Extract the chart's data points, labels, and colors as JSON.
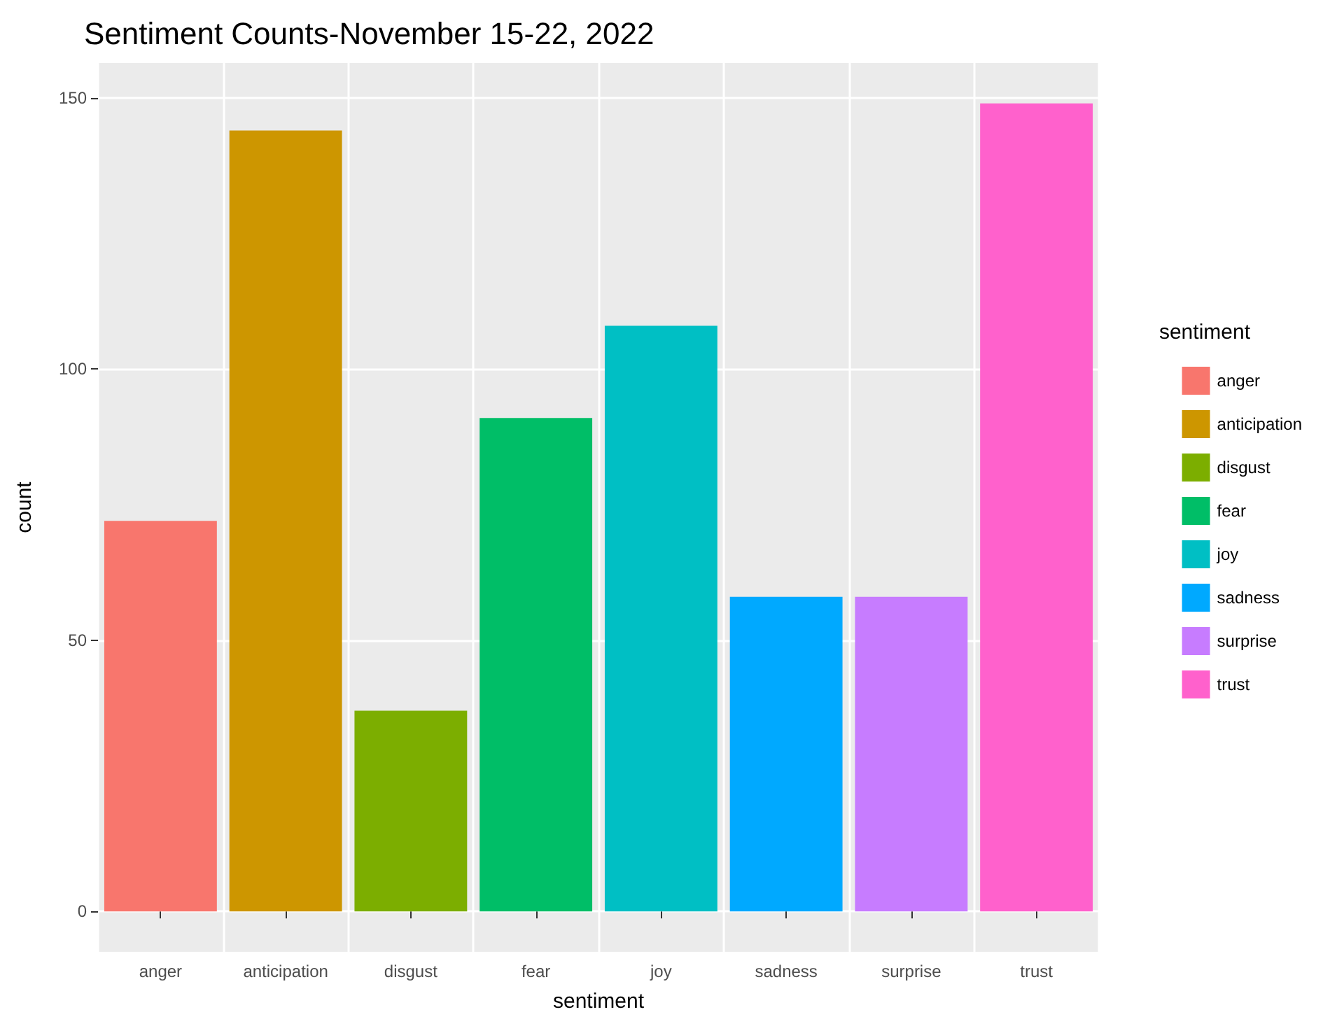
{
  "chart_data": {
    "type": "bar",
    "title": "Sentiment Counts-November 15-22, 2022",
    "xlabel": "sentiment",
    "ylabel": "count",
    "legend_title": "sentiment",
    "categories": [
      "anger",
      "anticipation",
      "disgust",
      "fear",
      "joy",
      "sadness",
      "surprise",
      "trust"
    ],
    "series": [
      {
        "name": "anger",
        "color": "#f8766d",
        "values": [
          72,
          null,
          null,
          null,
          null,
          null,
          null,
          null
        ]
      },
      {
        "name": "anticipation",
        "color": "#cd9600",
        "values": [
          null,
          144,
          null,
          null,
          null,
          null,
          null,
          null
        ]
      },
      {
        "name": "disgust",
        "color": "#7cae00",
        "values": [
          null,
          null,
          37,
          null,
          null,
          null,
          null,
          null
        ]
      },
      {
        "name": "fear",
        "color": "#00be67",
        "values": [
          null,
          null,
          null,
          91,
          null,
          null,
          null,
          null
        ]
      },
      {
        "name": "joy",
        "color": "#00bfc4",
        "values": [
          null,
          null,
          null,
          null,
          108,
          null,
          null,
          null
        ]
      },
      {
        "name": "sadness",
        "color": "#00a9ff",
        "values": [
          null,
          null,
          null,
          null,
          null,
          58,
          null,
          null
        ]
      },
      {
        "name": "surprise",
        "color": "#c77cff",
        "values": [
          null,
          null,
          null,
          null,
          null,
          null,
          58,
          null
        ]
      },
      {
        "name": "trust",
        "color": "#ff61cc",
        "values": [
          null,
          null,
          null,
          null,
          null,
          null,
          null,
          149
        ]
      }
    ],
    "ylim": [
      -7.45,
      156.45
    ],
    "yticks": [
      0,
      50,
      100,
      150
    ],
    "grid": true,
    "legend": "right"
  }
}
